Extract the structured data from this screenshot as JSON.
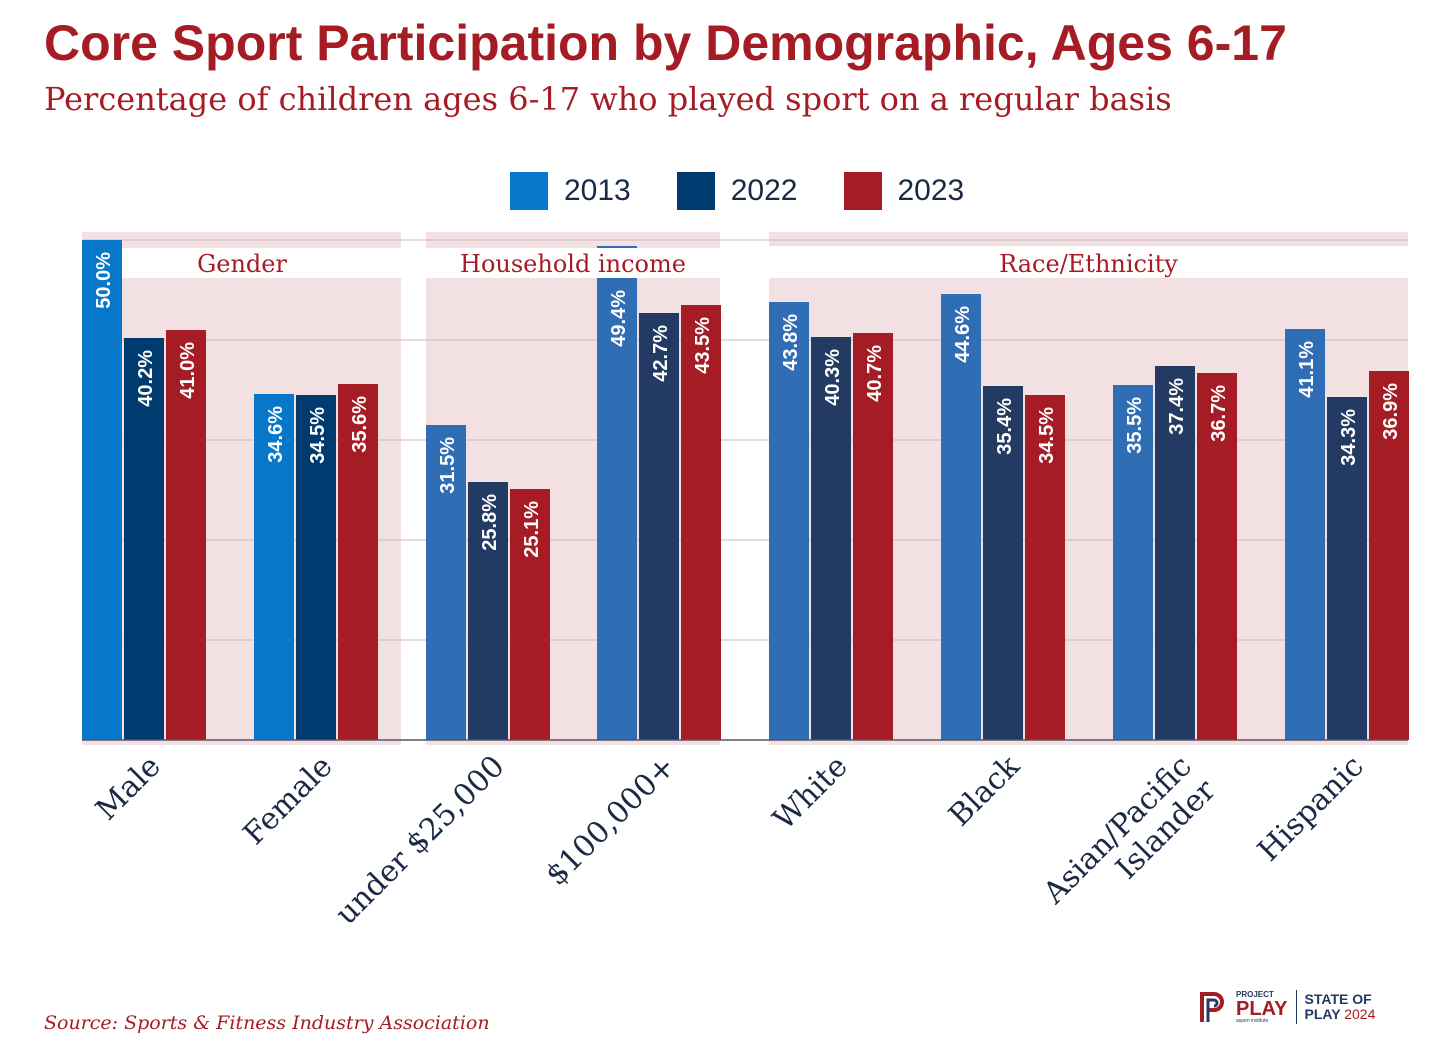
{
  "title": "Core Sport Participation by Demographic, Ages 6-17",
  "subtitle": "Percentage of children ages 6-17 who played sport on a regular basis",
  "source": "Source: Sports & Fitness Industry Association",
  "logo": {
    "project": "PROJECT",
    "play": "PLAY",
    "aspen": "aspen institute",
    "state_of": "STATE OF",
    "play2": "PLAY",
    "year": "2024"
  },
  "colors": {
    "2013": "#0677C9",
    "2022": "#003B6F",
    "2023": "#A51C24",
    "2013_alt": "#2F6DB5",
    "2022_alt": "#233A63",
    "panel_bg": "#F3E0E2",
    "title": "#A51C24"
  },
  "chart_data": {
    "type": "bar",
    "title": "Core Sport Participation by Demographic, Ages 6-17",
    "ylim": [
      0,
      50
    ],
    "grid": true,
    "legend_position": "top-center",
    "series": [
      {
        "name": "2013"
      },
      {
        "name": "2022"
      },
      {
        "name": "2023"
      }
    ],
    "groups": [
      {
        "label": "Gender",
        "categories": [
          "Male",
          "Female"
        ]
      },
      {
        "label": "Household income",
        "categories": [
          "under $25,000",
          "$100,000+"
        ]
      },
      {
        "label": "Race/Ethnicity",
        "categories": [
          "White",
          "Black",
          "Asian/Pacific Islander",
          "Hispanic"
        ]
      }
    ],
    "categories": [
      "Male",
      "Female",
      "under $25,000",
      "$100,000+",
      "White",
      "Black",
      "Asian/Pacific Islander",
      "Hispanic"
    ],
    "values": {
      "2013": [
        50.0,
        34.6,
        31.5,
        49.4,
        43.8,
        44.6,
        35.5,
        41.1
      ],
      "2022": [
        40.2,
        34.5,
        25.8,
        42.7,
        40.3,
        35.4,
        37.4,
        34.3
      ],
      "2023": [
        41.0,
        35.6,
        25.1,
        43.5,
        40.7,
        34.5,
        36.7,
        36.9
      ]
    }
  }
}
